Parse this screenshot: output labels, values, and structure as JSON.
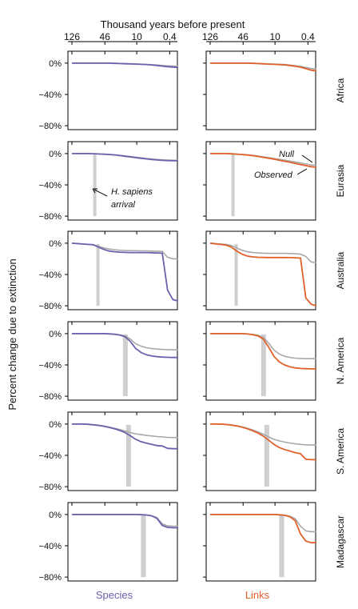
{
  "chart_data": {
    "type": "line",
    "title": "Thousand years before present",
    "ylabel": "Percent change due to extinction",
    "xtick_labels": [
      "126",
      "46",
      "10",
      "0.4"
    ],
    "ytick_labels": [
      "0%",
      "−40%",
      "−80%"
    ],
    "ylim": [
      -85,
      5
    ],
    "column_labels": [
      "Species",
      "Links"
    ],
    "row_labels": [
      "Africa",
      "Eurasia",
      "Australia",
      "N. America",
      "S. America",
      "Madagascar"
    ],
    "annotations": {
      "null": "Null",
      "observed": "Observed",
      "arrival": [
        "H. sapiens",
        "arrival"
      ]
    },
    "colors": {
      "species": "#6a62ad",
      "links": "#e0612a",
      "null": "#a8a8a8",
      "arrival_bar": "#cfcfcf"
    },
    "x": [
      0.0,
      0.05,
      0.1,
      0.15,
      0.2,
      0.25,
      0.3,
      0.35,
      0.4,
      0.45,
      0.5,
      0.55,
      0.6,
      0.65,
      0.7,
      0.75,
      0.8,
      0.85,
      0.9,
      0.95,
      1.0
    ],
    "arrival_position": [
      null,
      0.2,
      0.23,
      0.48,
      0.51,
      0.65
    ],
    "series": [
      {
        "panel": "species",
        "region": "Africa",
        "null": [
          0,
          0,
          0,
          0,
          0,
          0,
          0,
          0,
          -0.2,
          -0.4,
          -0.6,
          -0.8,
          -1,
          -1.3,
          -1.6,
          -2,
          -2.5,
          -3,
          -3.5,
          -3.8,
          -4
        ],
        "observed": [
          0,
          0,
          0,
          0,
          0,
          0,
          0,
          0,
          -0.3,
          -0.5,
          -0.8,
          -1,
          -1.2,
          -1.5,
          -1.8,
          -2.3,
          -3,
          -3.8,
          -4.5,
          -5,
          -5.5
        ]
      },
      {
        "panel": "links",
        "region": "Africa",
        "null": [
          0,
          0,
          0,
          0,
          0,
          0,
          0,
          0,
          -0.2,
          -0.4,
          -0.7,
          -1,
          -1.2,
          -1.5,
          -1.8,
          -2.5,
          -3.2,
          -4,
          -5.5,
          -7,
          -7.5
        ],
        "observed": [
          0,
          0,
          0,
          0,
          0,
          0,
          0,
          0,
          -0.3,
          -0.5,
          -0.9,
          -1.2,
          -1.5,
          -1.9,
          -2.3,
          -3,
          -4,
          -5.2,
          -7,
          -9,
          -10
        ]
      },
      {
        "panel": "species",
        "region": "Eurasia",
        "null": [
          0,
          0,
          0,
          0,
          -0.2,
          -0.4,
          -0.7,
          -1,
          -1.5,
          -2.2,
          -3,
          -3.8,
          -4.6,
          -5.4,
          -6.2,
          -7,
          -7.6,
          -8,
          -8.3,
          -8.5,
          -8.6
        ],
        "observed": [
          0,
          0,
          0,
          0,
          -0.2,
          -0.5,
          -0.8,
          -1.2,
          -1.8,
          -2.6,
          -3.5,
          -4.3,
          -5.2,
          -6,
          -6.8,
          -7.6,
          -8.2,
          -8.7,
          -9,
          -9.2,
          -9.3
        ]
      },
      {
        "panel": "links",
        "region": "Eurasia",
        "null": [
          0,
          0,
          0,
          0,
          -0.3,
          -0.6,
          -1,
          -1.6,
          -2.3,
          -3.2,
          -4.2,
          -5.2,
          -6.3,
          -7.4,
          -8.5,
          -9.6,
          -10.8,
          -12,
          -13.3,
          -14.5,
          -15
        ],
        "observed": [
          0,
          0,
          0,
          0,
          -0.3,
          -0.7,
          -1.2,
          -1.9,
          -2.7,
          -3.7,
          -4.8,
          -6,
          -7.2,
          -8.5,
          -9.8,
          -11.2,
          -12.6,
          -14,
          -15.5,
          -16.8,
          -17.5
        ]
      },
      {
        "panel": "species",
        "region": "Australia",
        "null": [
          0,
          -0.5,
          -1,
          -1.5,
          -2,
          -4,
          -6,
          -7.5,
          -8.5,
          -9,
          -9.3,
          -9.5,
          -9.6,
          -9.7,
          -9.8,
          -10,
          -10.2,
          -10.5,
          -18,
          -20,
          -20
        ],
        "observed": [
          0,
          -0.5,
          -1,
          -1.5,
          -2,
          -5,
          -8,
          -10,
          -11,
          -11.5,
          -11.8,
          -12,
          -12,
          -12,
          -12,
          -12.2,
          -12.5,
          -12.8,
          -60,
          -72,
          -74
        ]
      },
      {
        "panel": "links",
        "region": "Australia",
        "null": [
          0,
          -0.5,
          -1,
          -1.5,
          -3,
          -6,
          -9,
          -11,
          -12,
          -12.5,
          -12.8,
          -13,
          -13,
          -13,
          -13,
          -13.2,
          -13.5,
          -14,
          -17,
          -24,
          -25
        ],
        "observed": [
          0,
          -0.8,
          -1.5,
          -2.5,
          -5,
          -10,
          -14,
          -16.5,
          -17.5,
          -18,
          -18.2,
          -18.3,
          -18.3,
          -18.3,
          -18.3,
          -18.4,
          -18.6,
          -19,
          -70,
          -78,
          -80
        ]
      },
      {
        "panel": "species",
        "region": "N. America",
        "null": [
          0,
          0,
          0,
          0,
          0,
          0,
          0,
          -0.3,
          -0.8,
          -1.5,
          -3,
          -7,
          -13,
          -16,
          -18,
          -19,
          -19.8,
          -20.2,
          -20.5,
          -20.7,
          -20.8
        ],
        "observed": [
          0,
          0,
          0,
          0,
          0,
          0,
          0,
          -0.3,
          -0.8,
          -1.7,
          -4,
          -10,
          -19,
          -24,
          -27,
          -28.5,
          -29.5,
          -30,
          -30.3,
          -30.5,
          -30.5
        ]
      },
      {
        "panel": "links",
        "region": "N. America",
        "null": [
          0,
          0,
          0,
          0,
          0,
          0,
          0,
          -0.3,
          -1,
          -2,
          -5,
          -12,
          -21,
          -26,
          -29,
          -30.5,
          -31.3,
          -31.7,
          -32,
          -32,
          -32
        ],
        "observed": [
          0,
          0,
          0,
          0,
          0,
          0,
          0,
          -0.5,
          -1.3,
          -3,
          -7,
          -17,
          -29,
          -36,
          -40,
          -42.5,
          -43.8,
          -44.5,
          -44.8,
          -45,
          -45
        ]
      },
      {
        "panel": "species",
        "region": "S. America",
        "null": [
          0,
          0,
          0,
          -0.3,
          -0.8,
          -1.5,
          -2.5,
          -3.8,
          -5.3,
          -7,
          -9,
          -11,
          -12.5,
          -13.5,
          -14.5,
          -15.3,
          -16,
          -16.5,
          -17,
          -17.2,
          -17.3
        ],
        "observed": [
          0,
          0,
          0,
          -0.3,
          -0.9,
          -1.7,
          -2.8,
          -4.3,
          -6,
          -8.2,
          -11,
          -15,
          -19.5,
          -22.5,
          -24.5,
          -26,
          -27.5,
          -28,
          -31,
          -31.5,
          -31.5
        ]
      },
      {
        "panel": "links",
        "region": "S. America",
        "null": [
          0,
          0,
          0,
          -0.5,
          -1.2,
          -2.2,
          -3.6,
          -5.4,
          -7.6,
          -10,
          -13,
          -16.5,
          -19.5,
          -21.5,
          -23,
          -24.3,
          -25.3,
          -26,
          -26.5,
          -26.8,
          -27
        ],
        "observed": [
          0,
          0,
          0,
          -0.5,
          -1.3,
          -2.5,
          -4,
          -6,
          -8.6,
          -11.6,
          -15.5,
          -20.5,
          -26,
          -30,
          -32.5,
          -34.5,
          -36.5,
          -38,
          -45,
          -45.5,
          -45.5
        ]
      },
      {
        "panel": "species",
        "region": "Madagascar",
        "null": [
          0,
          0,
          0,
          0,
          0,
          0,
          0,
          0,
          0,
          0,
          0,
          0,
          0,
          -0.2,
          -0.5,
          -1.5,
          -4,
          -12,
          -14.5,
          -15,
          -15
        ],
        "observed": [
          0,
          0,
          0,
          0,
          0,
          0,
          0,
          0,
          0,
          0,
          0,
          0,
          0,
          -0.2,
          -0.6,
          -1.8,
          -5,
          -14,
          -16.5,
          -17,
          -17
        ]
      },
      {
        "panel": "links",
        "region": "Madagascar",
        "null": [
          0,
          0,
          0,
          0,
          0,
          0,
          0,
          0,
          0,
          0,
          0,
          0,
          0,
          -0.3,
          -0.8,
          -2.2,
          -5.5,
          -15,
          -21,
          -22,
          -22
        ],
        "observed": [
          0,
          0,
          0,
          0,
          0,
          0,
          0,
          0,
          0,
          0,
          0,
          0,
          0,
          -0.4,
          -1,
          -3,
          -8,
          -25,
          -34,
          -36,
          -36
        ]
      }
    ]
  }
}
